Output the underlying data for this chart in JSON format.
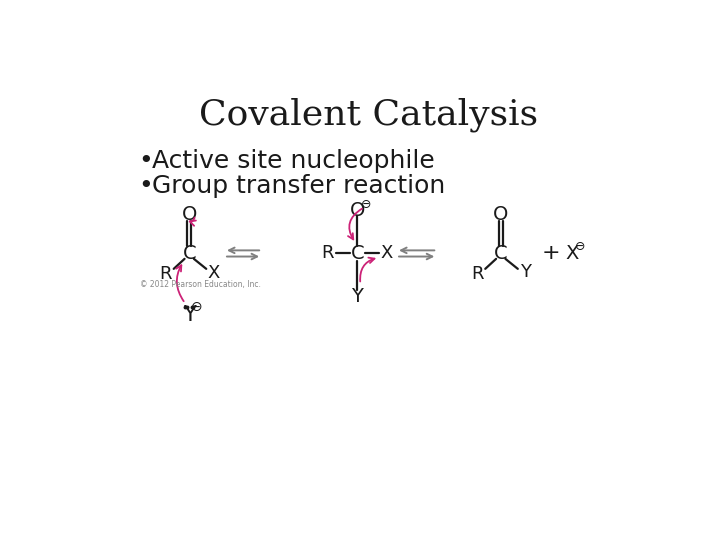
{
  "title": "Covalent Catalysis",
  "bullet1": "Active site nucleophile",
  "bullet2": "Group transfer reaction",
  "background_color": "#ffffff",
  "title_fontsize": 26,
  "bullet_fontsize": 18,
  "chem_fontsize": 13,
  "arrow_color": "#cc2277",
  "eq_arrow_color": "#808080",
  "text_color": "#1a1a1a",
  "copyright": "© 2012 Pearson Education, Inc."
}
